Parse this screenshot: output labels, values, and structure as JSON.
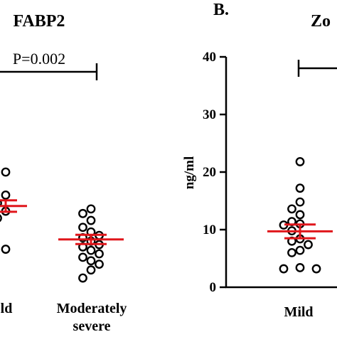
{
  "colors": {
    "axis": "#000000",
    "point_stroke": "#000000",
    "point_fill": "#ffffff",
    "mean_sem": "#e0161b"
  },
  "chart_data": [
    {
      "type": "scatter",
      "title": "FABP2",
      "categories": [
        "Mild",
        "Moderately severe"
      ],
      "category_labels_visible": [
        "ld",
        "Moderately\nsevere"
      ],
      "annotation": "P=0.002",
      "points": {
        "Mild": [
          20.0,
          16.0,
          14.6,
          13.2,
          12.0,
          6.6
        ],
        "Moderately severe": [
          13.6,
          12.8,
          11.6,
          10.4,
          9.6,
          9.0,
          8.6,
          8.0,
          7.4,
          7.0,
          6.4,
          5.8,
          5.2,
          4.6,
          4.0,
          3.0,
          1.6
        ]
      },
      "mean": {
        "Mild": 14.1,
        "Moderately severe": 8.3
      },
      "sem": {
        "Mild": 1.0,
        "Moderately severe": 0.8
      }
    },
    {
      "type": "scatter",
      "panel_label": "B.",
      "title": "Zo",
      "ylabel": "ng/ml",
      "ylim": [
        0,
        40
      ],
      "yticks": [
        0,
        10,
        20,
        30,
        40
      ],
      "categories": [
        "Mild"
      ],
      "points": {
        "Mild": [
          21.8,
          17.2,
          14.8,
          13.6,
          12.6,
          11.4,
          11.0,
          10.8,
          9.8,
          8.4,
          8.0,
          7.4,
          6.4,
          6.0,
          3.4,
          3.2,
          3.2
        ]
      },
      "mean": {
        "Mild": 9.7
      },
      "sem": {
        "Mild": 1.2
      }
    }
  ]
}
